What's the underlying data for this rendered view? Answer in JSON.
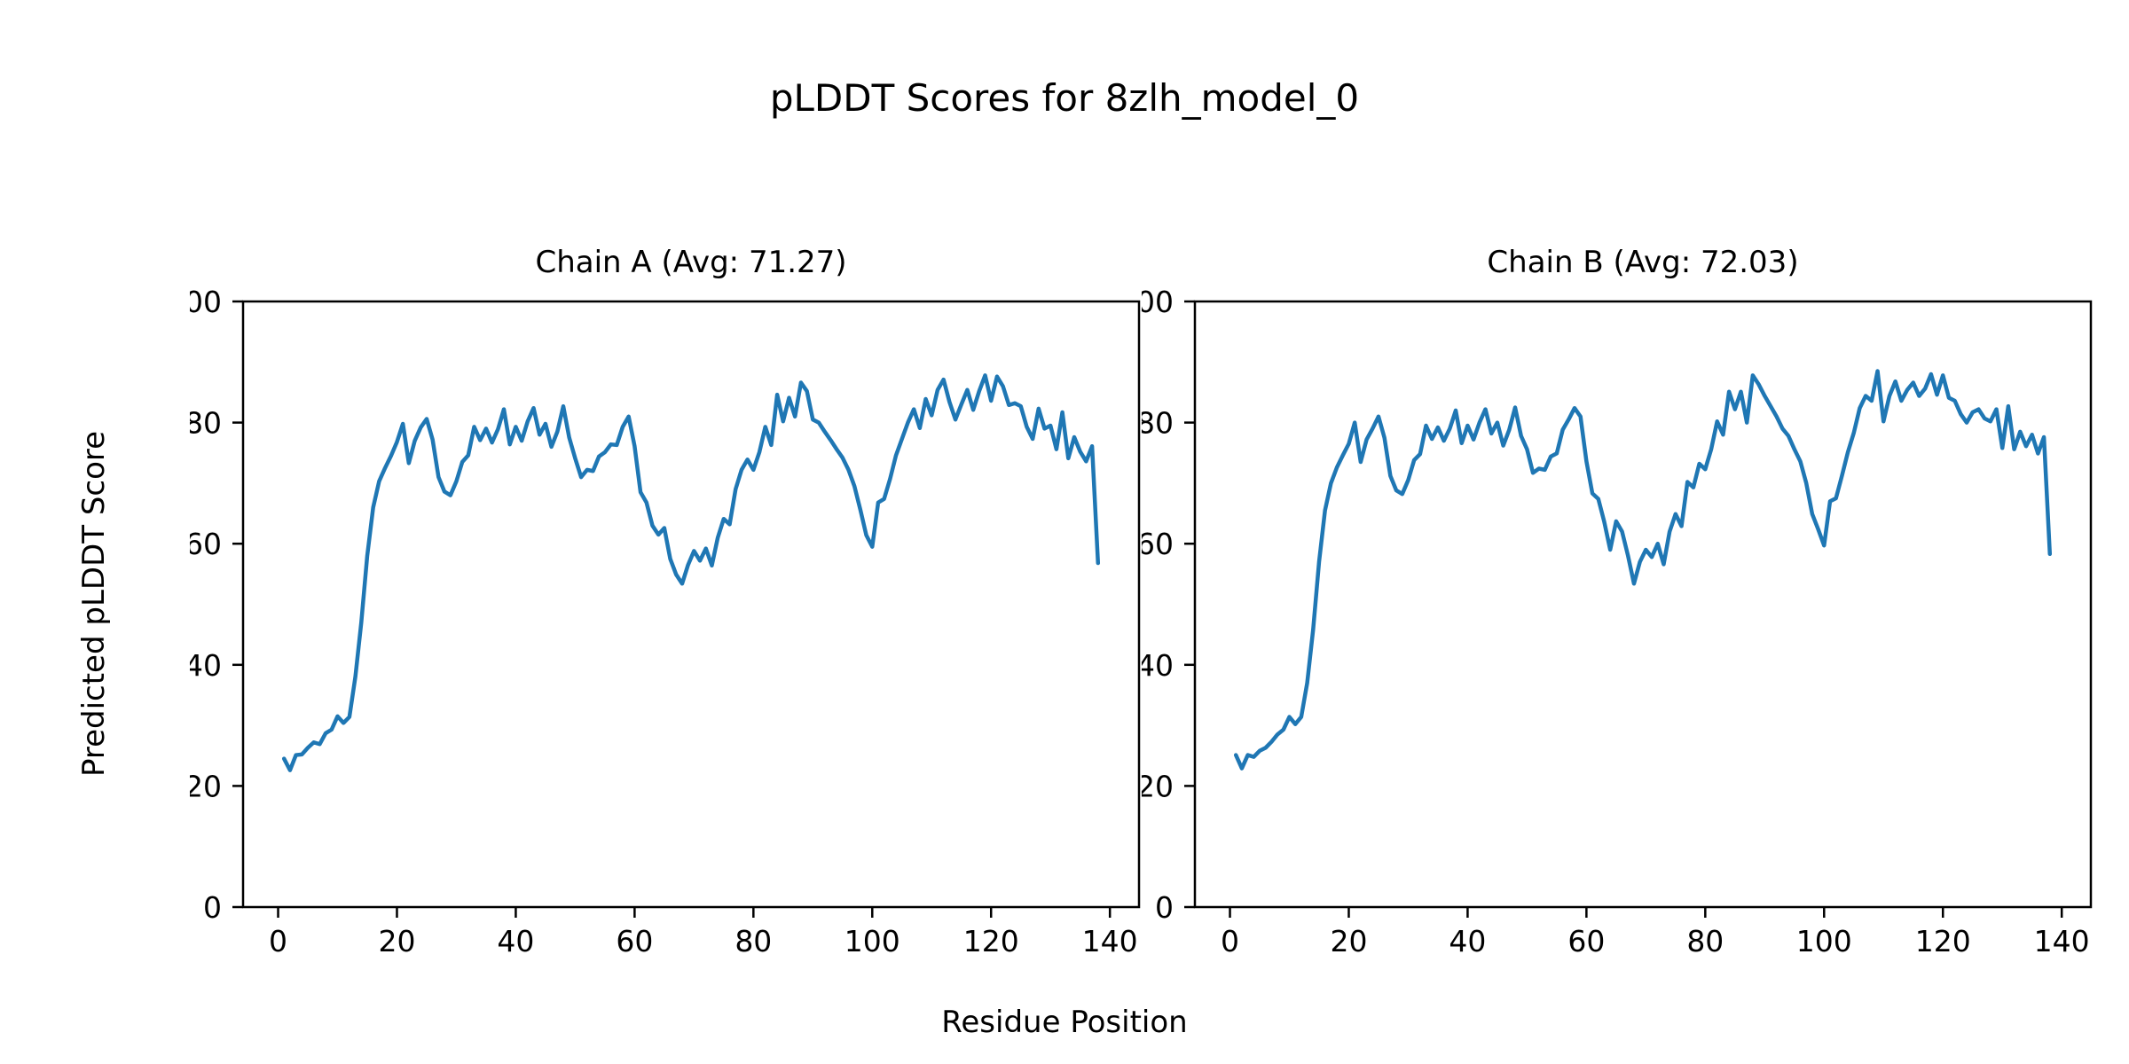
{
  "figure": {
    "title": "pLDDT Scores for 8zlh_model_0",
    "xlabel": "Residue Position",
    "ylabel": "Predicted pLDDT Score",
    "background_color": "#ffffff",
    "line_color": "#1f77b4",
    "axis_color": "#000000"
  },
  "chart_data": [
    {
      "type": "line",
      "title": "Chain A (Avg: 71.27)",
      "chain": "A",
      "avg": 71.27,
      "xlabel": "Residue Position",
      "ylabel": "Predicted pLDDT Score",
      "legend": "none",
      "grid": false,
      "x_start": 1,
      "xlim": [
        -5.9,
        144.9
      ],
      "ylim": [
        0,
        100
      ],
      "x_ticks": [
        0,
        20,
        40,
        60,
        80,
        100,
        120,
        140
      ],
      "y_ticks": [
        0,
        20,
        40,
        60,
        80,
        100
      ],
      "values": [
        24.5,
        22.6,
        25.1,
        25.2,
        26.3,
        27.2,
        26.9,
        28.7,
        29.3,
        31.5,
        30.4,
        31.4,
        38.0,
        47.0,
        58.0,
        66.0,
        70.3,
        72.5,
        74.5,
        76.8,
        79.8,
        73.3,
        77.0,
        79.2,
        80.6,
        77.2,
        71.0,
        68.6,
        68.0,
        70.3,
        73.5,
        74.6,
        79.3,
        77.1,
        79.0,
        76.7,
        78.9,
        82.2,
        76.4,
        79.3,
        77.0,
        80.2,
        82.4,
        78.0,
        79.8,
        76.0,
        78.5,
        82.7,
        77.5,
        74.1,
        71.0,
        72.2,
        72.0,
        74.4,
        75.1,
        76.4,
        76.3,
        79.3,
        81.0,
        76.1,
        68.5,
        66.8,
        63.0,
        61.5,
        62.6,
        57.5,
        54.9,
        53.4,
        56.5,
        58.8,
        57.2,
        59.2,
        56.4,
        61.0,
        64.1,
        63.2,
        69.0,
        72.2,
        73.9,
        72.2,
        75.1,
        79.3,
        76.3,
        84.6,
        80.2,
        84.1,
        81.0,
        86.6,
        85.2,
        80.5,
        80.0,
        78.5,
        77.1,
        75.6,
        74.2,
        72.2,
        69.5,
        65.6,
        61.4,
        59.5,
        66.8,
        67.4,
        70.7,
        74.6,
        77.3,
        80.0,
        82.2,
        79.1,
        83.9,
        81.2,
        85.4,
        87.1,
        83.4,
        80.5,
        83.0,
        85.4,
        82.1,
        85.2,
        87.8,
        83.6,
        87.6,
        86.0,
        82.9,
        83.2,
        82.7,
        79.3,
        77.3,
        82.3,
        79.0,
        79.5,
        75.6,
        81.7,
        74.1,
        77.6,
        75.2,
        73.6,
        76.1,
        56.8
      ]
    },
    {
      "type": "line",
      "title": "Chain B (Avg: 72.03)",
      "chain": "B",
      "avg": 72.03,
      "xlabel": "Residue Position",
      "ylabel": "Predicted pLDDT Score",
      "legend": "none",
      "grid": false,
      "x_start": 1,
      "xlim": [
        -5.9,
        144.9
      ],
      "ylim": [
        0,
        100
      ],
      "x_ticks": [
        0,
        20,
        40,
        60,
        80,
        100,
        120,
        140
      ],
      "y_ticks": [
        0,
        20,
        40,
        60,
        80,
        100
      ],
      "values": [
        25.1,
        22.9,
        25.1,
        24.8,
        25.8,
        26.3,
        27.3,
        28.5,
        29.3,
        31.4,
        30.2,
        31.4,
        37.0,
        45.8,
        57.0,
        65.5,
        70.0,
        72.6,
        74.6,
        76.5,
        80.0,
        73.5,
        77.2,
        79.0,
        81.0,
        77.5,
        71.2,
        68.8,
        68.2,
        70.5,
        73.8,
        74.8,
        79.5,
        77.3,
        79.2,
        77.0,
        79.0,
        82.0,
        76.6,
        79.5,
        77.2,
        80.0,
        82.2,
        78.2,
        80.0,
        76.2,
        78.8,
        82.5,
        77.8,
        75.6,
        71.7,
        72.4,
        72.2,
        74.4,
        74.9,
        78.8,
        80.5,
        82.4,
        81.0,
        73.6,
        68.3,
        67.4,
        63.6,
        59.0,
        63.7,
        62.0,
        58.0,
        53.4,
        57.0,
        59.0,
        57.8,
        60.0,
        56.6,
        62.0,
        64.9,
        62.9,
        70.2,
        69.3,
        73.2,
        72.3,
        75.6,
        80.2,
        78.0,
        85.1,
        82.2,
        85.1,
        80.0,
        87.8,
        86.3,
        84.4,
        82.7,
        81.0,
        79.0,
        77.8,
        75.6,
        73.6,
        70.0,
        64.9,
        62.4,
        59.7,
        67.0,
        67.5,
        71.2,
        75.1,
        78.3,
        82.4,
        84.4,
        83.6,
        88.5,
        80.2,
        84.4,
        86.8,
        83.6,
        85.4,
        86.6,
        84.4,
        85.6,
        88.0,
        84.6,
        87.8,
        84.1,
        83.6,
        81.4,
        80.0,
        81.7,
        82.2,
        80.7,
        80.2,
        82.2,
        75.8,
        82.7,
        75.6,
        78.5,
        76.1,
        78.0,
        74.9,
        77.6,
        58.3
      ]
    }
  ]
}
